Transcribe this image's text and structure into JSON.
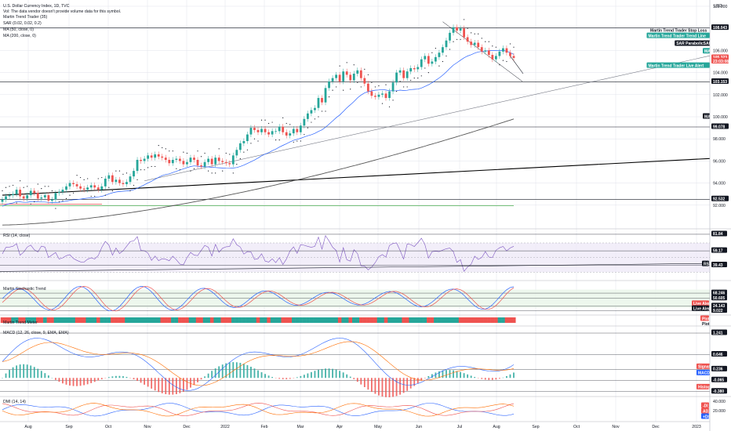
{
  "header": {
    "title": "U.S. Dollar Currency Index, 1D, TVC",
    "note": "Vol: The data vendor doesn't provide volume data for this symbol.",
    "indicators": [
      "Martin Trend Trader (35)",
      "SAR (0.02, 0.02, 0.2)",
      "MA (50, close, 0)",
      "MA (200, close, 0)"
    ]
  },
  "currency": "USD",
  "colors": {
    "up": "#26a69a",
    "down": "#ef5350",
    "ma50": "#2962ff",
    "ma200": "#555555",
    "rsi": "#7e57c2",
    "stochK": "#2962ff",
    "stochD": "#ef5350",
    "grid": "#e0e3eb"
  },
  "x_axis": {
    "labels": [
      "Aug",
      "Sep",
      "Oct",
      "Nov",
      "Dec",
      "2022",
      "Feb",
      "Mar",
      "Apr",
      "May",
      "Jun",
      "Jul",
      "Aug",
      "Sep",
      "Oct",
      "Nov",
      "Dec",
      "2023"
    ]
  },
  "chart_data": [
    {
      "name": "price",
      "type": "candlestick",
      "title": "U.S. Dollar Currency Index, 1D, TVC",
      "ylim": [
        90,
        110
      ],
      "yticks": [
        92,
        94,
        96,
        98,
        100,
        102,
        104,
        106,
        108,
        110
      ],
      "ytick_labels": [
        "92.000",
        "94.000",
        "96.000",
        "98.000",
        "100.000",
        "102.000",
        "104.000",
        "106.000",
        "108.000",
        "110.000"
      ],
      "price_labels": [
        {
          "value": 108.043,
          "text": "108.043",
          "style": "dark"
        },
        {
          "value": 105.323,
          "text": "105.323",
          "style": "red"
        },
        {
          "value": 105.0,
          "text": "23:03:08",
          "style": "red-small"
        },
        {
          "value": 103.153,
          "text": "103.153",
          "style": "dark"
        },
        {
          "value": 99.078,
          "text": "99.078",
          "style": "dark"
        },
        {
          "value": 92.532,
          "text": "92.532",
          "style": "dark"
        }
      ],
      "right_tags": [
        {
          "value": 107.8,
          "text": "Martin Trend Trader Stop Loss",
          "style": "plain"
        },
        {
          "value": 107.3,
          "text": "Martin Trend Trader Trend Line",
          "style": "teal"
        },
        {
          "value": 106.6,
          "text": "SAR ParabolicSAR",
          "style": "dark"
        },
        {
          "value": 105.9,
          "text": "MA",
          "style": "teal-small"
        },
        {
          "value": 104.6,
          "text": "Martin Trend Trader Live Alert",
          "style": "teal"
        },
        {
          "value": 100.0,
          "text": "MA",
          "style": "dark-small"
        }
      ],
      "hlines": [
        108.043,
        103.153,
        99.078,
        92.532
      ],
      "green_hline": 91.95,
      "red_hline": 92.1,
      "close": [
        92.5,
        92.8,
        92.9,
        93.0,
        93.4,
        92.8,
        92.6,
        92.9,
        93.3,
        93.1,
        92.6,
        92.7,
        92.9,
        92.4,
        92.5,
        93.1,
        93.2,
        93.4,
        93.7,
        94.0,
        93.9,
        93.7,
        93.5,
        93.4,
        93.6,
        93.8,
        93.6,
        93.4,
        93.7,
        94.4,
        94.7,
        94.1,
        94.3,
        94.0,
        93.9,
        94.1,
        94.6,
        95.1,
        96.1,
        96.0,
        96.2,
        96.5,
        96.3,
        96.6,
        96.4,
        96.3,
        96.1,
        95.8,
        96.1,
        96.2,
        96.0,
        95.7,
        95.9,
        96.3,
        96.1,
        95.6,
        95.5,
        95.9,
        96.2,
        95.7,
        96.3,
        96.0,
        95.9,
        95.8,
        95.7,
        96.5,
        97.0,
        97.6,
        97.8,
        98.4,
        99.0,
        98.8,
        98.6,
        98.9,
        98.6,
        98.4,
        98.7,
        98.7,
        99.1,
        98.6,
        98.3,
        98.5,
        98.9,
        98.6,
        99.2,
        99.8,
        100.3,
        100.6,
        100.8,
        101.7,
        101.3,
        102.6,
        103.2,
        103.5,
        103.8,
        103.2,
        104.1,
        103.8,
        103.3,
        103.9,
        104.2,
        103.5,
        103.0,
        102.3,
        101.9,
        101.8,
        102.0,
        102.1,
        101.7,
        102.3,
        103.1,
        104.0,
        104.2,
        103.5,
        104.1,
        104.4,
        104.3,
        104.5,
        105.2,
        105.5,
        104.8,
        105.0,
        105.4,
        105.8,
        106.3,
        106.9,
        107.6,
        108.1,
        107.8,
        108.0,
        107.2,
        106.8,
        106.5,
        106.7,
        106.3,
        105.9,
        106.0,
        105.6,
        105.2,
        105.5,
        105.9,
        106.2,
        105.8,
        105.5,
        105.323
      ],
      "ma50_start_index": 25,
      "ma50_start": 92.3,
      "ma200_start_index": 0,
      "ma200_start": 90.2,
      "ma200_end": 99.8,
      "trendlines": [
        {
          "from": [
            0,
            92.9
          ],
          "to": [
            168,
            95.7
          ],
          "color": "#000000"
        },
        {
          "from": [
            40,
            94.2
          ],
          "to": [
            168,
            103.3
          ],
          "color": "#787b86"
        }
      ],
      "down_arrow_line": {
        "from": [
          124,
          108.6
        ],
        "to": [
          142,
          103.2
        ]
      }
    },
    {
      "name": "rsi",
      "type": "line",
      "title": "RSI (14, close)",
      "ylim": [
        25,
        85
      ],
      "band": [
        30,
        70
      ],
      "levels": [
        {
          "value": 81.84,
          "text": "81.84"
        },
        {
          "value": 59.17,
          "text": "59.17"
        },
        {
          "value": 39.43,
          "text": "39.43"
        }
      ],
      "tag": "RSI"
    },
    {
      "name": "stoch",
      "type": "line",
      "title": "Martin Stochastic Trend",
      "ylim": [
        0,
        100
      ],
      "levels": [
        {
          "value": 68.246,
          "text": "68.246"
        },
        {
          "value": 50.605,
          "text": "50.605"
        },
        {
          "value": 24.143,
          "text": "24.143"
        },
        {
          "value": 9.022,
          "text": "9.022"
        }
      ],
      "tags": [
        {
          "value": 32,
          "text": "Live Alert",
          "style": "red"
        },
        {
          "value": 15,
          "text": "Live Alert",
          "style": "dark"
        }
      ]
    },
    {
      "name": "trend_meter",
      "type": "bar",
      "title": "Martin Trend Meter",
      "tags": [
        {
          "text": "Plot",
          "style": "red"
        },
        {
          "text": "Plot",
          "style": "plain"
        }
      ]
    },
    {
      "name": "macd",
      "type": "bar",
      "title": "MACD (12, 26, close, 9, EMA, EMA)",
      "ylim": [
        -0.45,
        1.35
      ],
      "levels": [
        {
          "value": 1.241,
          "text": "1.241"
        },
        {
          "value": 0.646,
          "text": "0.646"
        },
        {
          "value": 0.236,
          "text": "0.236"
        },
        {
          "value": -0.065,
          "text": "-0.065"
        },
        {
          "value": -0.38,
          "text": "-0.380"
        }
      ],
      "tags": [
        {
          "text": "Signal",
          "style": "red"
        },
        {
          "text": "MACD",
          "style": "blue"
        },
        {
          "text": "Histogram",
          "style": "red"
        }
      ]
    },
    {
      "name": "dmi",
      "type": "line",
      "title": "DMI (14, 14)",
      "ylim": [
        0,
        45
      ],
      "yticks": [
        {
          "value": 40,
          "text": "40.000"
        },
        {
          "value": 20,
          "text": "20.000"
        }
      ],
      "tags": [
        {
          "text": "-DI",
          "style": "red"
        },
        {
          "text": "ADX",
          "style": "red"
        },
        {
          "text": "+DI",
          "style": "blue"
        }
      ]
    }
  ]
}
